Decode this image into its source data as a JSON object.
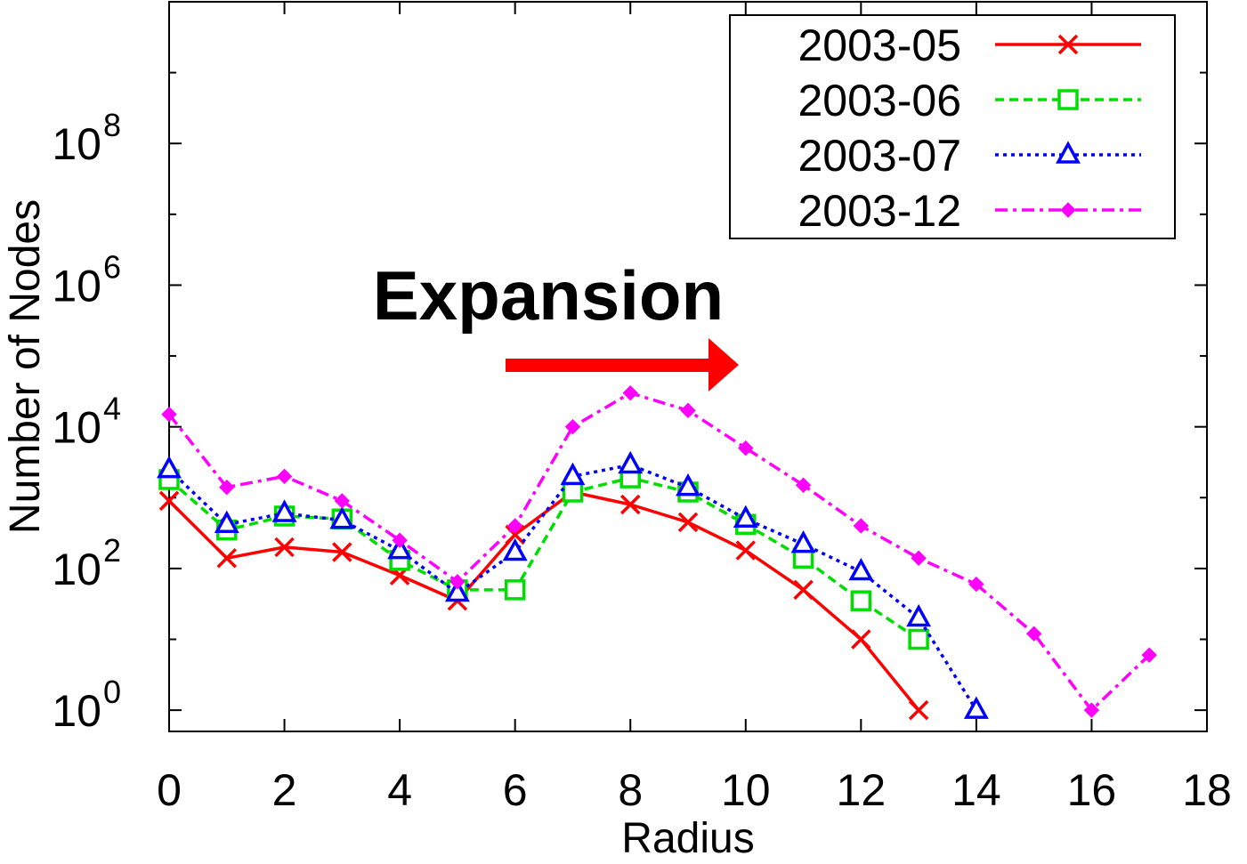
{
  "chart_data": {
    "type": "line",
    "xlabel": "Radius",
    "ylabel": "Number of Nodes",
    "xlim": [
      0,
      18
    ],
    "ylim_log10": [
      -0.3,
      10
    ],
    "y_scale": "log",
    "x_ticks": [
      "0",
      "2",
      "4",
      "6",
      "8",
      "10",
      "12",
      "14",
      "16",
      "18"
    ],
    "y_ticks": [
      {
        "base": "10",
        "exp": "0",
        "value": 1
      },
      {
        "base": "10",
        "exp": "2",
        "value": 100
      },
      {
        "base": "10",
        "exp": "4",
        "value": 10000
      },
      {
        "base": "10",
        "exp": "6",
        "value": 1000000
      },
      {
        "base": "10",
        "exp": "8",
        "value": 100000000
      }
    ],
    "legend_position": "top-right",
    "annotation": {
      "text": "Expansion",
      "arrow": "right"
    },
    "series": [
      {
        "name": "2003-05",
        "color": "#ff0000",
        "marker": "x",
        "dash": "solid",
        "x": [
          0,
          1,
          2,
          3,
          4,
          5,
          6,
          7,
          8,
          9,
          10,
          11,
          12,
          13
        ],
        "y": [
          900,
          140,
          200,
          170,
          80,
          35,
          300,
          1200,
          800,
          450,
          180,
          50,
          10,
          1
        ]
      },
      {
        "name": "2003-06",
        "color": "#00dd00",
        "marker": "square",
        "dash": "dashed",
        "x": [
          0,
          1,
          2,
          3,
          4,
          5,
          6,
          7,
          8,
          9,
          10,
          11,
          12,
          13
        ],
        "y": [
          1800,
          350,
          550,
          500,
          130,
          50,
          50,
          1200,
          1900,
          1200,
          420,
          140,
          35,
          10
        ]
      },
      {
        "name": "2003-07",
        "color": "#0000ff",
        "marker": "triangle",
        "dash": "dotted",
        "x": [
          0,
          1,
          2,
          3,
          4,
          5,
          6,
          7,
          8,
          9,
          10,
          11,
          12,
          13,
          14
        ],
        "y": [
          2500,
          420,
          600,
          480,
          180,
          45,
          170,
          2000,
          2900,
          1400,
          500,
          220,
          90,
          20,
          1
        ]
      },
      {
        "name": "2003-12",
        "color": "#ff00ff",
        "marker": "diamond",
        "dash": "dashdot",
        "x": [
          0,
          1,
          2,
          3,
          4,
          5,
          6,
          7,
          8,
          9,
          10,
          11,
          12,
          13,
          14,
          15,
          16,
          17
        ],
        "y": [
          15000,
          1400,
          2000,
          900,
          250,
          65,
          400,
          10000,
          30000,
          17000,
          5000,
          1500,
          400,
          140,
          60,
          12,
          1,
          6
        ]
      }
    ]
  }
}
